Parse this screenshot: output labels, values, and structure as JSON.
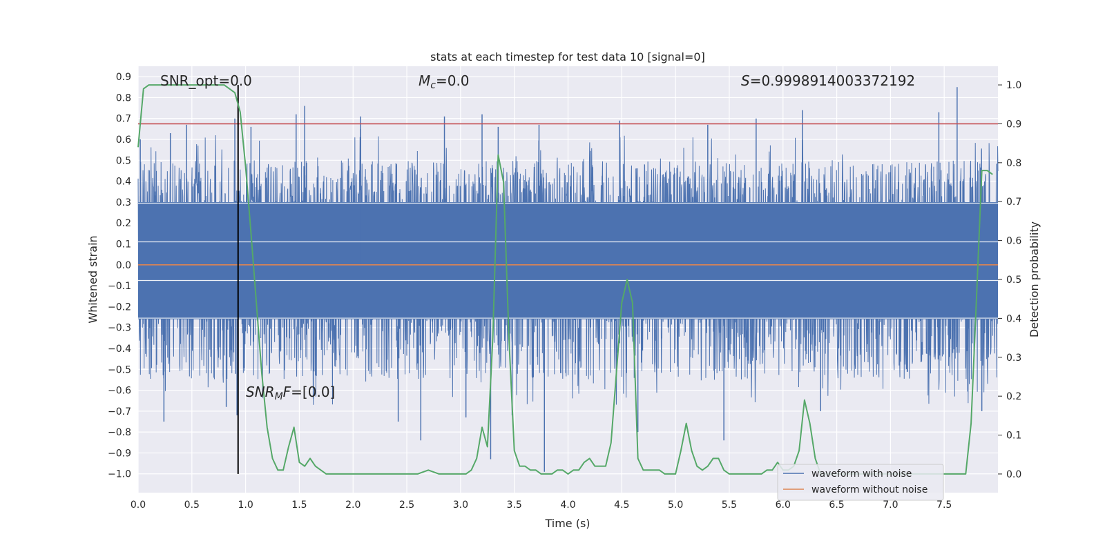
{
  "chart_data": {
    "type": "line",
    "title": "stats at each timestep for test data 10 [signal=0]",
    "xlabel": "Time (s)",
    "ylabel": "Whitened strain",
    "y2label": "Detection probability",
    "xlim": [
      0.0,
      8.0
    ],
    "ylim": [
      -1.09,
      0.95
    ],
    "y2lim": [
      -0.048,
      1.048
    ],
    "xticks": [
      0.0,
      0.5,
      1.0,
      1.5,
      2.0,
      2.5,
      3.0,
      3.5,
      4.0,
      4.5,
      5.0,
      5.5,
      6.0,
      6.5,
      7.0,
      7.5
    ],
    "yticks": [
      0.9,
      0.8,
      0.7,
      0.6,
      0.5,
      0.4,
      0.3,
      0.2,
      0.1,
      0.0,
      -0.1,
      -0.2,
      -0.3,
      -0.4,
      -0.5,
      -0.6,
      -0.7,
      -0.8,
      -0.9,
      -1.0
    ],
    "y2ticks": [
      1.0,
      0.9,
      0.8,
      0.7,
      0.6,
      0.5,
      0.4,
      0.3,
      0.2,
      0.1,
      0.0
    ],
    "grid": true,
    "legend_position": "lower-right",
    "series": [
      {
        "name": "waveform with noise",
        "color": "#4c72b0",
        "kind": "noise-waveform",
        "amplitude_envelope": {
          "dense_low": -0.26,
          "dense_high": 0.3,
          "typical_low": -0.55,
          "typical_high": 0.5
        },
        "peaks": [
          {
            "x": 0.02,
            "y": 0.6
          },
          {
            "x": 0.3,
            "y": 0.63
          },
          {
            "x": 0.45,
            "y": 0.67
          },
          {
            "x": 0.9,
            "y": 0.7
          },
          {
            "x": 1.05,
            "y": 0.66
          },
          {
            "x": 1.47,
            "y": 0.72
          },
          {
            "x": 1.55,
            "y": 0.76
          },
          {
            "x": 2.07,
            "y": 0.65
          },
          {
            "x": 2.07,
            "y": 0.71
          },
          {
            "x": 2.85,
            "y": 0.71
          },
          {
            "x": 3.2,
            "y": 0.72
          },
          {
            "x": 3.35,
            "y": 0.66
          },
          {
            "x": 3.73,
            "y": 0.67
          },
          {
            "x": 4.48,
            "y": 0.69
          },
          {
            "x": 5.3,
            "y": 0.67
          },
          {
            "x": 5.75,
            "y": 0.7
          },
          {
            "x": 6.18,
            "y": 0.74
          },
          {
            "x": 7.45,
            "y": 0.73
          },
          {
            "x": 7.62,
            "y": 0.85
          }
        ],
        "troughs": [
          {
            "x": 0.24,
            "y": -0.75
          },
          {
            "x": 0.82,
            "y": -0.68
          },
          {
            "x": 0.92,
            "y": -0.72
          },
          {
            "x": 1.63,
            "y": -0.64
          },
          {
            "x": 2.42,
            "y": -0.75
          },
          {
            "x": 2.63,
            "y": -0.84
          },
          {
            "x": 3.05,
            "y": -0.73
          },
          {
            "x": 3.28,
            "y": -0.93
          },
          {
            "x": 3.48,
            "y": -0.72
          },
          {
            "x": 3.78,
            "y": -0.99
          },
          {
            "x": 4.65,
            "y": -0.8
          },
          {
            "x": 5.45,
            "y": -0.84
          },
          {
            "x": 6.35,
            "y": -0.7
          },
          {
            "x": 7.85,
            "y": -0.7
          }
        ]
      },
      {
        "name": "waveform without noise",
        "color": "#dd8452",
        "x": [
          0.0,
          8.0
        ],
        "y": [
          0.0,
          0.0
        ]
      },
      {
        "name": "",
        "axis": "right",
        "color": "#55a868",
        "x": [
          0.0,
          0.05,
          0.1,
          0.15,
          0.2,
          0.25,
          0.3,
          0.35,
          0.4,
          0.45,
          0.5,
          0.55,
          0.6,
          0.65,
          0.7,
          0.75,
          0.8,
          0.85,
          0.9,
          0.95,
          1.0,
          1.05,
          1.1,
          1.15,
          1.2,
          1.25,
          1.3,
          1.35,
          1.4,
          1.45,
          1.5,
          1.55,
          1.6,
          1.65,
          1.7,
          1.75,
          1.8,
          1.85,
          1.9,
          1.95,
          2.0,
          2.1,
          2.2,
          2.3,
          2.4,
          2.5,
          2.6,
          2.7,
          2.8,
          2.9,
          3.0,
          3.05,
          3.1,
          3.15,
          3.2,
          3.25,
          3.3,
          3.35,
          3.4,
          3.45,
          3.5,
          3.55,
          3.6,
          3.65,
          3.7,
          3.75,
          3.8,
          3.85,
          3.9,
          3.95,
          4.0,
          4.05,
          4.1,
          4.15,
          4.2,
          4.25,
          4.3,
          4.35,
          4.4,
          4.45,
          4.5,
          4.55,
          4.6,
          4.65,
          4.7,
          4.75,
          4.8,
          4.85,
          4.9,
          4.95,
          5.0,
          5.05,
          5.1,
          5.15,
          5.2,
          5.25,
          5.3,
          5.35,
          5.4,
          5.45,
          5.5,
          5.6,
          5.7,
          5.8,
          5.85,
          5.9,
          5.95,
          6.0,
          6.05,
          6.1,
          6.15,
          6.2,
          6.25,
          6.3,
          6.35,
          6.4,
          6.5,
          6.6,
          6.7,
          6.8,
          6.9,
          7.0,
          7.1,
          7.2,
          7.3,
          7.4,
          7.5,
          7.6,
          7.65,
          7.7,
          7.75,
          7.8,
          7.85,
          7.9,
          7.95
        ],
        "y": [
          0.84,
          0.99,
          1.0,
          1.0,
          1.0,
          1.0,
          1.0,
          1.0,
          1.0,
          1.0,
          1.0,
          1.0,
          1.0,
          1.0,
          1.0,
          1.0,
          1.0,
          0.99,
          0.98,
          0.93,
          0.79,
          0.62,
          0.44,
          0.26,
          0.12,
          0.04,
          0.01,
          0.01,
          0.07,
          0.12,
          0.03,
          0.02,
          0.04,
          0.02,
          0.01,
          0.0,
          0.0,
          0.0,
          0.0,
          0.0,
          0.0,
          0.0,
          0.0,
          0.0,
          0.0,
          0.0,
          0.0,
          0.01,
          0.0,
          0.0,
          0.0,
          0.0,
          0.01,
          0.04,
          0.12,
          0.07,
          0.35,
          0.82,
          0.75,
          0.35,
          0.06,
          0.02,
          0.02,
          0.01,
          0.01,
          0.0,
          0.0,
          0.0,
          0.01,
          0.01,
          0.0,
          0.01,
          0.01,
          0.03,
          0.04,
          0.02,
          0.02,
          0.02,
          0.08,
          0.26,
          0.44,
          0.5,
          0.44,
          0.04,
          0.01,
          0.01,
          0.01,
          0.01,
          0.0,
          0.0,
          0.0,
          0.06,
          0.13,
          0.06,
          0.02,
          0.01,
          0.02,
          0.04,
          0.04,
          0.01,
          0.0,
          0.0,
          0.0,
          0.0,
          0.01,
          0.01,
          0.03,
          0.01,
          0.01,
          0.02,
          0.06,
          0.19,
          0.13,
          0.04,
          0.0,
          0.0,
          0.0,
          0.0,
          0.0,
          0.0,
          0.0,
          0.0,
          0.0,
          0.0,
          0.0,
          0.0,
          0.0,
          0.0,
          0.0,
          0.0,
          0.13,
          0.45,
          0.78,
          0.78,
          0.77
        ]
      }
    ],
    "reference_lines": [
      {
        "axis": "right",
        "orientation": "horizontal",
        "value": 0.9,
        "color": "#c44e52"
      },
      {
        "axis": "x",
        "orientation": "vertical",
        "value": 0.93,
        "color": "#000000"
      }
    ],
    "annotations": {
      "snr_opt": "SNR_opt=0.0",
      "mc_symbol": "M",
      "mc_sub": "c",
      "mc_value": "=0.0",
      "s_symbol": "S",
      "s_value": "=0.9998914003372192",
      "snrmf_main": "SNR",
      "snrmf_sub": "M",
      "snrmf_tail": "F",
      "snrmf_value": "=[0.0]"
    }
  }
}
